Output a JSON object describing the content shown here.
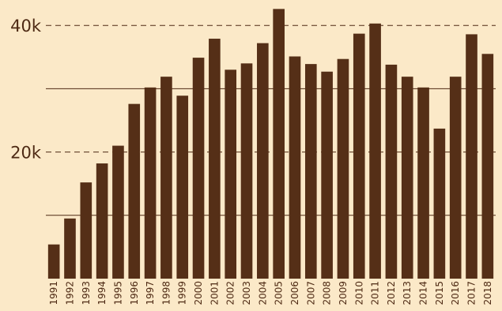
{
  "chart_data": {
    "type": "bar",
    "title": "",
    "xlabel": "",
    "ylabel": "",
    "categories": [
      "1991",
      "1992",
      "1993",
      "1994",
      "1995",
      "1996",
      "1997",
      "1998",
      "1999",
      "2000",
      "2001",
      "2002",
      "2003",
      "2004",
      "2005",
      "2006",
      "2007",
      "2008",
      "2009",
      "2010",
      "2011",
      "2012",
      "2013",
      "2014",
      "2015",
      "2016",
      "2017",
      "2018"
    ],
    "values": [
      5400,
      9500,
      15200,
      18200,
      21000,
      27600,
      30200,
      31900,
      28900,
      34900,
      37900,
      33000,
      34000,
      37200,
      42600,
      35100,
      33900,
      32700,
      34700,
      38700,
      40300,
      33800,
      31900,
      30200,
      23700,
      31900,
      38600,
      35500
    ],
    "ylim": [
      0,
      44000
    ],
    "y_ticks": [
      {
        "value": 40000,
        "label": "40k",
        "major": true
      },
      {
        "value": 30000,
        "label": "",
        "major": false
      },
      {
        "value": 20000,
        "label": "20k",
        "major": true
      },
      {
        "value": 10000,
        "label": "",
        "major": false
      }
    ],
    "grid": true,
    "colors": {
      "bar": "#552f17",
      "background": "#fbe9c8",
      "grid": "#4e2a14",
      "text": "#4e2a14"
    }
  }
}
